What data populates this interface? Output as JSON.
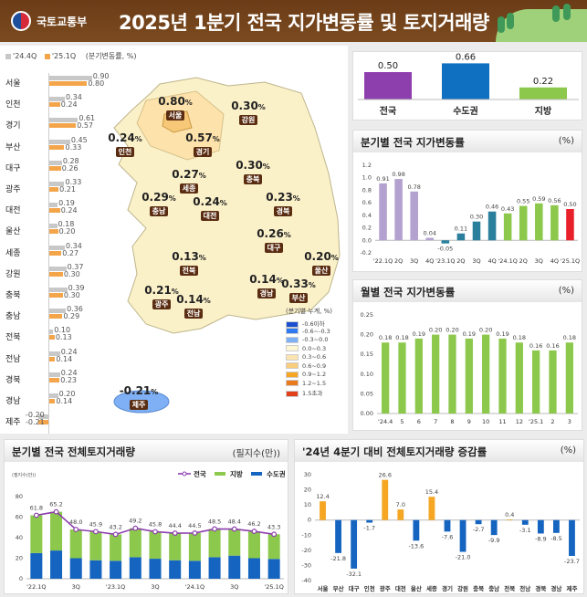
{
  "header": {
    "org": "국토교통부",
    "title": "2025년 1분기 전국 지가변동률 및 토지거래량"
  },
  "regional_list": {
    "legend": [
      "'24.4Q",
      "'25.1Q"
    ],
    "unit": "(분기변동률, %)",
    "colors": {
      "prev": "#c8c8c8",
      "cur": "#f4a54a"
    },
    "items": [
      {
        "name": "서울",
        "prev": "0.90",
        "cur": "0.80"
      },
      {
        "name": "인천",
        "prev": "0.34",
        "cur": "0.24"
      },
      {
        "name": "경기",
        "prev": "0.61",
        "cur": "0.57"
      },
      {
        "name": "부산",
        "prev": "0.45",
        "cur": "0.33"
      },
      {
        "name": "대구",
        "prev": "0.28",
        "cur": "0.26"
      },
      {
        "name": "광주",
        "prev": "0.33",
        "cur": "0.21"
      },
      {
        "name": "대전",
        "prev": "0.19",
        "cur": "0.24"
      },
      {
        "name": "울산",
        "prev": "0.18",
        "cur": "0.20"
      },
      {
        "name": "세종",
        "prev": "0.34",
        "cur": "0.27"
      },
      {
        "name": "강원",
        "prev": "0.37",
        "cur": "0.30"
      },
      {
        "name": "충북",
        "prev": "0.39",
        "cur": "0.30"
      },
      {
        "name": "충남",
        "prev": "0.36",
        "cur": "0.29"
      },
      {
        "name": "전북",
        "prev": "0.10",
        "cur": "0.13"
      },
      {
        "name": "전남",
        "prev": "0.24",
        "cur": "0.14"
      },
      {
        "name": "경북",
        "prev": "0.24",
        "cur": "0.23"
      },
      {
        "name": "경남",
        "prev": "0.20",
        "cur": "0.14"
      },
      {
        "name": "제주",
        "prev": "-0.20",
        "cur": "-0.21"
      }
    ]
  },
  "map": {
    "unit_symbol": "%",
    "regions": [
      {
        "name": "서울",
        "value": "0.80"
      },
      {
        "name": "강원",
        "value": "0.30"
      },
      {
        "name": "인천",
        "value": "0.24"
      },
      {
        "name": "경기",
        "value": "0.57"
      },
      {
        "name": "충북",
        "value": "0.30"
      },
      {
        "name": "세종",
        "value": "0.27"
      },
      {
        "name": "충남",
        "value": "0.29"
      },
      {
        "name": "대전",
        "value": "0.24"
      },
      {
        "name": "경북",
        "value": "0.23"
      },
      {
        "name": "대구",
        "value": "0.26"
      },
      {
        "name": "전북",
        "value": "0.13"
      },
      {
        "name": "울산",
        "value": "0.20"
      },
      {
        "name": "광주",
        "value": "0.21"
      },
      {
        "name": "전남",
        "value": "0.14"
      },
      {
        "name": "경남",
        "value": "0.14"
      },
      {
        "name": "부산",
        "value": "0.33"
      },
      {
        "name": "제주",
        "value": "-0.21"
      }
    ],
    "legend_title": "(분기별 누계, %)",
    "legend": [
      {
        "label": "-0.6이하",
        "color": "#1a4fd0"
      },
      {
        "label": "-0.6~-0.3",
        "color": "#2f7af0"
      },
      {
        "label": "-0.3~0.0",
        "color": "#7fb0f5"
      },
      {
        "label": "0.0~0.3",
        "color": "#fdf7d6"
      },
      {
        "label": "0.3~0.6",
        "color": "#fbe4b0"
      },
      {
        "label": "0.6~0.9",
        "color": "#f8cd7c"
      },
      {
        "label": "0.9~1.2",
        "color": "#f5a623"
      },
      {
        "label": "1.2~1.5",
        "color": "#ea7a1c"
      },
      {
        "label": "1.5초과",
        "color": "#e2401b"
      }
    ]
  },
  "chart_data": [
    {
      "type": "bar",
      "title": "",
      "categories": [
        "전국",
        "수도권",
        "지방"
      ],
      "values": [
        0.5,
        0.66,
        0.22
      ],
      "colors": [
        "#8e3fae",
        "#0f6fc0",
        "#8cc84b"
      ]
    },
    {
      "type": "bar",
      "title": "분기별 전국 지가변동률",
      "unit": "(%)",
      "categories": [
        "'22.1Q",
        "2Q",
        "3Q",
        "4Q",
        "'23.1Q",
        "2Q",
        "3Q",
        "4Q",
        "'24.1Q",
        "2Q",
        "3Q",
        "4Q",
        "'25.1Q"
      ],
      "values": [
        0.91,
        0.98,
        0.78,
        0.04,
        -0.05,
        0.11,
        0.3,
        0.46,
        0.43,
        0.55,
        0.59,
        0.56,
        0.5
      ],
      "colors": [
        "#b3a2cf",
        "#b3a2cf",
        "#b3a2cf",
        "#b3a2cf",
        "#2a7f9c",
        "#2a7f9c",
        "#2a7f9c",
        "#2a7f9c",
        "#8cc84b",
        "#8cc84b",
        "#8cc84b",
        "#8cc84b",
        "#e8202a"
      ],
      "ylim": [
        -0.2,
        1.2
      ],
      "yticks": [
        "-0.2",
        "0.0",
        "0.2",
        "0.4",
        "0.6",
        "0.8",
        "1.0",
        "1.2"
      ]
    },
    {
      "type": "bar",
      "title": "월별 전국 지가변동률",
      "unit": "(%)",
      "categories": [
        "'24.4",
        "5",
        "6",
        "7",
        "8",
        "9",
        "10",
        "11",
        "12",
        "'25.1",
        "2",
        "3"
      ],
      "values": [
        0.18,
        0.18,
        0.19,
        0.2,
        0.2,
        0.19,
        0.2,
        0.19,
        0.18,
        0.16,
        0.16,
        0.18
      ],
      "color": "#8cc84b",
      "ylim": [
        0,
        0.25
      ],
      "yticks": [
        "0.00",
        "0.05",
        "0.10",
        "0.15",
        "0.20",
        "0.25"
      ]
    },
    {
      "type": "bar",
      "stacked": true,
      "title": "분기별 전국 전체토지거래량",
      "unit": "(필지수(만))",
      "ylabel": "(필지수(만))",
      "categories": [
        "'22.1Q",
        "",
        "3Q",
        "",
        "'23.1Q",
        "",
        "3Q",
        "",
        "'24.1Q",
        "",
        "3Q",
        "",
        "'25.1Q"
      ],
      "series": [
        {
          "name": "수도권",
          "color": "#1565c0",
          "values": [
            25,
            27.5,
            20,
            18,
            17.5,
            21,
            19.5,
            18,
            17.5,
            21,
            22.5,
            20,
            19.3
          ]
        },
        {
          "name": "지방",
          "color": "#8cc84b",
          "values": [
            36.8,
            37.7,
            28,
            27.9,
            25.7,
            28.2,
            26.3,
            26.4,
            27,
            27.5,
            25.9,
            26.2,
            24
          ]
        },
        {
          "name": "전국",
          "type": "line",
          "color": "#8e3fae",
          "values": [
            61.8,
            65.2,
            48.0,
            45.9,
            43.2,
            49.2,
            45.8,
            44.4,
            44.5,
            48.5,
            48.4,
            46.2,
            43.3
          ]
        }
      ],
      "ylim": [
        0,
        80
      ],
      "yticks": [
        "0",
        "20",
        "40",
        "60",
        "80"
      ]
    },
    {
      "type": "bar",
      "title": "'24년 4분기 대비 전체토지거래량 증감률",
      "unit": "(%)",
      "categories": [
        "서울",
        "부산",
        "대구",
        "인천",
        "광주",
        "대전",
        "울산",
        "세종",
        "경기",
        "강원",
        "충북",
        "충남",
        "전북",
        "전남",
        "경북",
        "경남",
        "제주"
      ],
      "values": [
        12.4,
        -21.8,
        -32.1,
        -1.7,
        26.6,
        7.0,
        -13.6,
        15.4,
        -7.6,
        -21.0,
        -2.7,
        -9.9,
        0.4,
        -3.1,
        -8.9,
        -8.5,
        -23.7
      ],
      "colors": {
        "positive": "#f5a623",
        "negative": "#1565c0"
      },
      "ylim": [
        -40,
        30
      ],
      "yticks": [
        "-40",
        "-30",
        "-20",
        "-10",
        "0",
        "10",
        "20",
        "30"
      ]
    }
  ]
}
